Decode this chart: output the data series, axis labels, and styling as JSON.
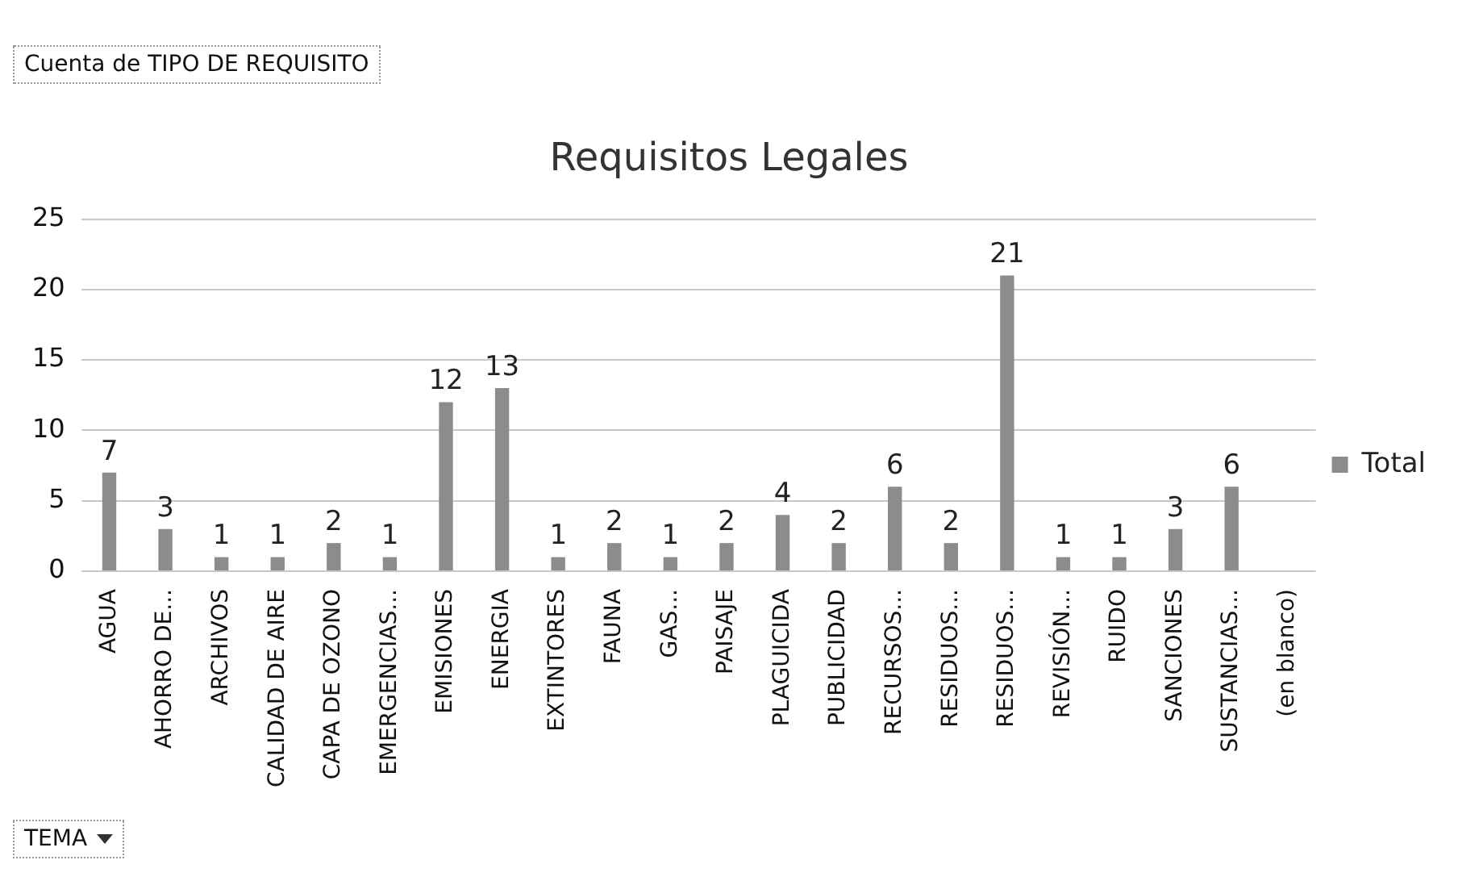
{
  "chart_data": {
    "type": "bar",
    "title": "Requisitos Legales",
    "categories": [
      "AGUA",
      "AHORRO DE...",
      "ARCHIVOS",
      "CALIDAD DE AIRE",
      "CAPA DE OZONO",
      "EMERGENCIAS...",
      "EMISIONES",
      "ENERGIA",
      "EXTINTORES",
      "FAUNA",
      "GAS...",
      "PAISAJE",
      "PLAGUICIDA",
      "PUBLICIDAD",
      "RECURSOS...",
      "RESIDUOS...",
      "RESIDUOS...",
      "REVISIÓN...",
      "RUIDO",
      "SANCIONES",
      "SUSTANCIAS...",
      "(en blanco)"
    ],
    "series": [
      {
        "name": "Total",
        "color": "#8c8c8c",
        "values": [
          7,
          3,
          1,
          1,
          2,
          1,
          12,
          13,
          1,
          2,
          1,
          2,
          4,
          2,
          6,
          2,
          21,
          1,
          1,
          3,
          6,
          null
        ]
      }
    ],
    "ylim": [
      0,
      25
    ],
    "yticks": [
      0,
      5,
      10,
      15,
      20,
      25
    ],
    "grid": "y",
    "legend": "right",
    "data_labels": true,
    "annotations": [
      "Cuenta de TIPO DE REQUISITO",
      "TEMA"
    ]
  }
}
